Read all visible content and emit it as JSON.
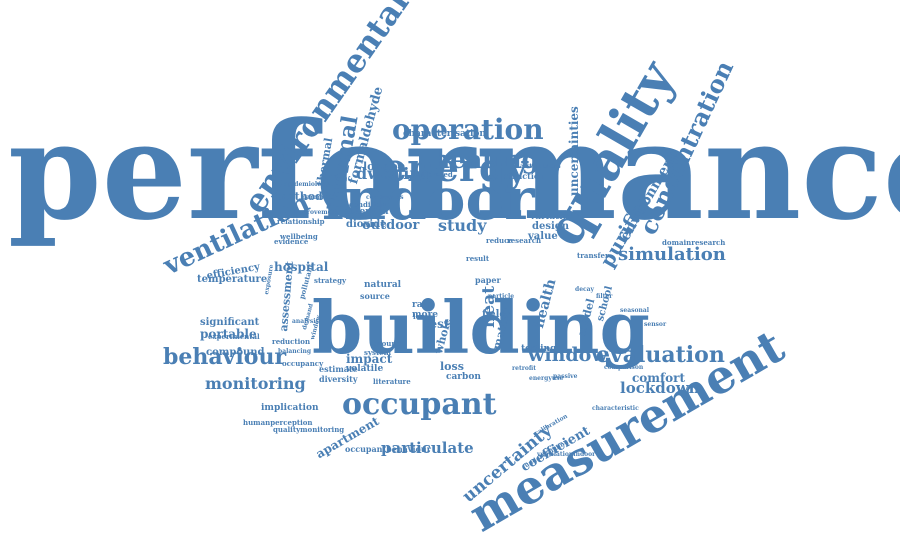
{
  "cloud": {
    "color": "#4a7fb4",
    "words": [
      "performance",
      "building",
      "measurement",
      "quality",
      "indoor",
      "energy",
      "environmental",
      "occupant",
      "ventilation",
      "operation",
      "heating",
      "thermal",
      "concentration",
      "behaviour",
      "evaluation",
      "simulation",
      "window",
      "purifier",
      "environment",
      "monitoring",
      "lockdown",
      "particulate",
      "uncertainty",
      "dwelling",
      "study",
      "outdoor",
      "formaldehyde",
      "uncertainties",
      "comfort",
      "hospital",
      "portable",
      "impact",
      "heat",
      "test",
      "health",
      "coefficient",
      "apartment",
      "efficiency",
      "temperature",
      "significant",
      "compound",
      "assessment",
      "method",
      "thermal",
      "london",
      "characterisation",
      "field",
      "model",
      "school",
      "loss",
      "carbon",
      "design",
      "value",
      "variation",
      "dioxide",
      "potential",
      "testing",
      "implication",
      "volatile",
      "natural",
      "source",
      "diversity",
      "estimate",
      "occupantbehaviour",
      "qualitymonitoring",
      "humanperception",
      "domainresearch",
      "transfer",
      "evidence",
      "relationship",
      "wellbeing",
      "experimental",
      "occupancy",
      "reduction",
      "balancing",
      "calibrated",
      "construction",
      "condition",
      "paper",
      "reduce",
      "research",
      "result",
      "matter",
      "whole",
      "ground",
      "system",
      "level",
      "rate",
      "more",
      "literature",
      "epidemiology",
      "improvement",
      "parameter",
      "calibration",
      "characteristic",
      "ventilationindoor",
      "understanding",
      "continuous",
      "airtightness",
      "decay",
      "filter",
      "particle",
      "pollutant",
      "exposure",
      "strategy",
      "analysis",
      "demand",
      "window",
      "retrofit",
      "seasonal",
      "sensor",
      "energyuse",
      "passive",
      "comparison"
    ]
  }
}
